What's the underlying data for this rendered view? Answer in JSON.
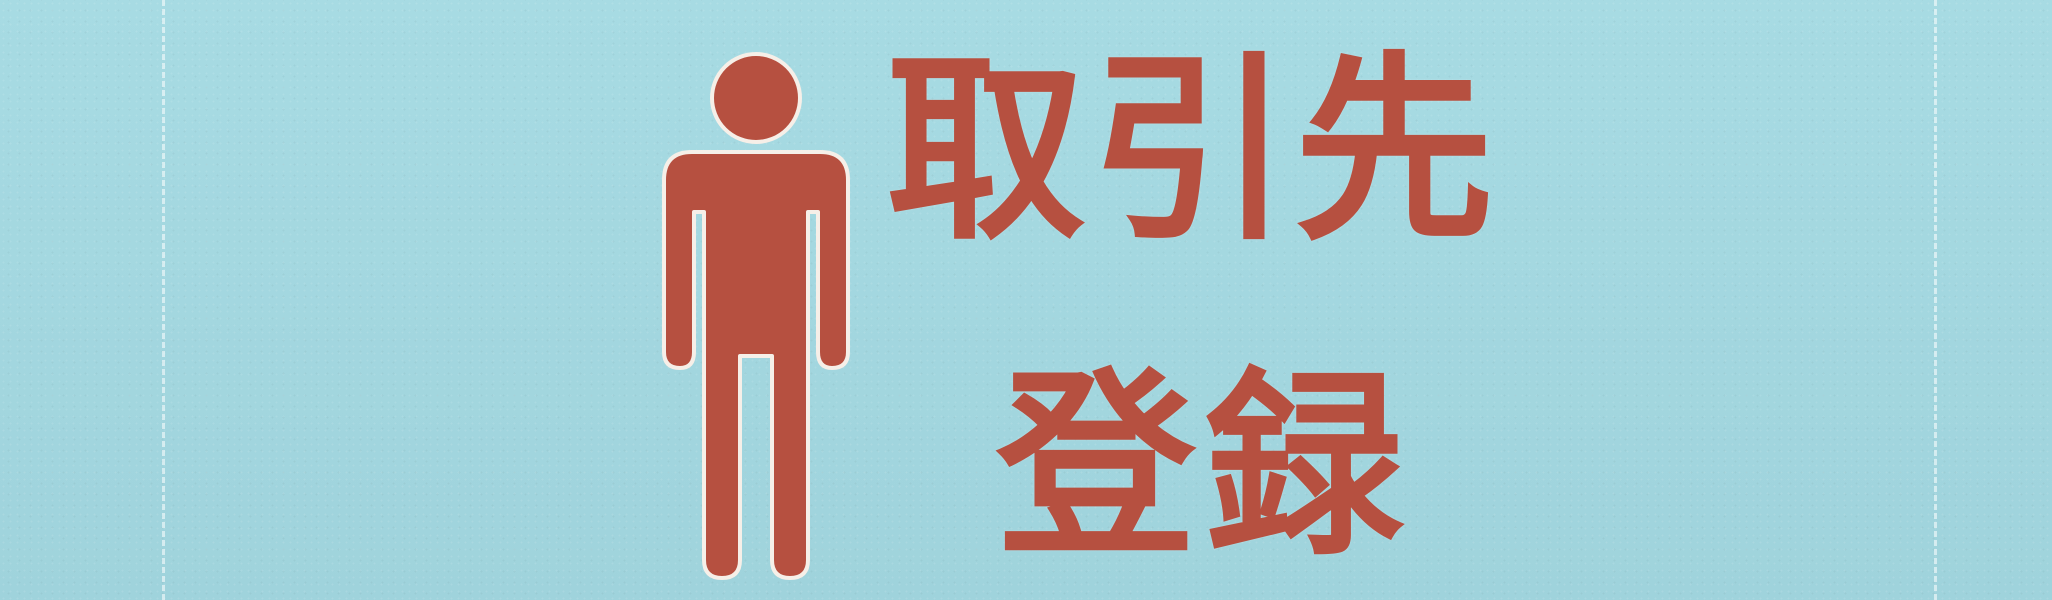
{
  "background": {
    "color": "#a2d7df",
    "stitch_color": "#f4fbfc"
  },
  "icon": {
    "name": "person-icon",
    "color": "#b65040",
    "outline": "#f6efe8"
  },
  "title": {
    "line1": "取引先",
    "line2": "登録"
  }
}
